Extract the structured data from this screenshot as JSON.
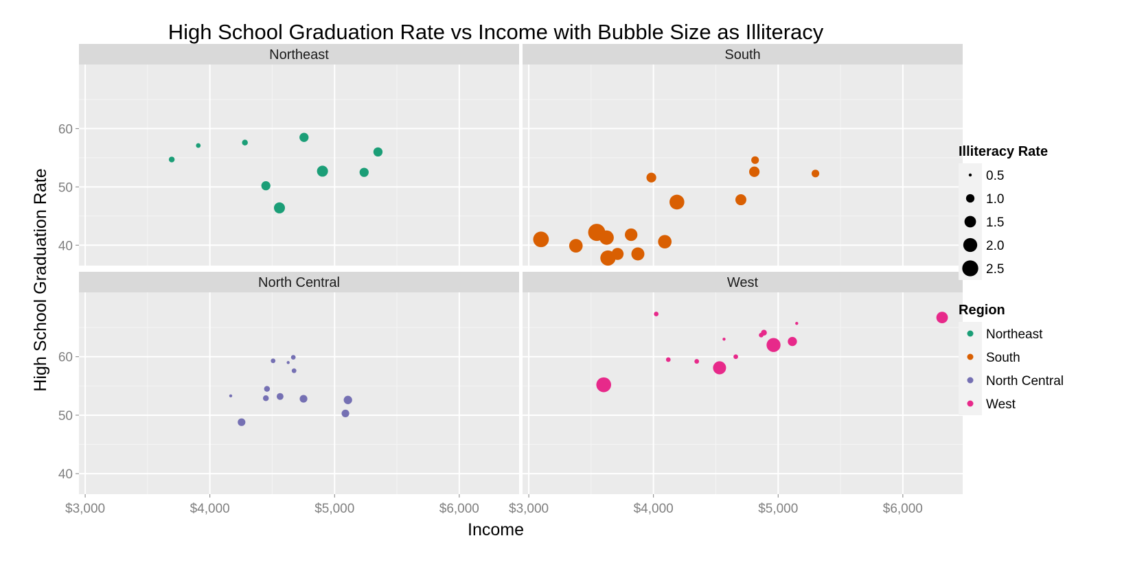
{
  "chart_data": {
    "type": "scatter",
    "title": "High School Graduation Rate vs Income with Bubble Size as Illiteracy",
    "xlabel": "Income",
    "ylabel": "High School Graduation Rate",
    "xlim": [
      2950,
      6480
    ],
    "ylim": [
      36.5,
      71
    ],
    "x_ticks": [
      3000,
      4000,
      5000,
      6000
    ],
    "x_tick_labels": [
      "$3,000",
      "$4,000",
      "$5,000",
      "$6,000"
    ],
    "y_ticks": [
      40,
      50,
      60
    ],
    "y_tick_labels": [
      "40",
      "50",
      "60"
    ],
    "grid": true,
    "legend_position": "right",
    "size_legend": {
      "title": "Illiteracy Rate",
      "values": [
        0.5,
        1.0,
        1.5,
        2.0,
        2.5
      ],
      "labels": [
        "0.5",
        "1.0",
        "1.5",
        "2.0",
        "2.5"
      ]
    },
    "color_legend": {
      "title": "Region",
      "entries": [
        {
          "label": "Northeast",
          "color": "#1b9e77"
        },
        {
          "label": "South",
          "color": "#d95f02"
        },
        {
          "label": "North Central",
          "color": "#7570b3"
        },
        {
          "label": "West",
          "color": "#e7298a"
        }
      ]
    },
    "facets": [
      {
        "name": "Northeast",
        "color": "#1b9e77",
        "points": [
          {
            "income": 3694,
            "grad": 54.7,
            "illiteracy": 0.7
          },
          {
            "income": 3907,
            "grad": 57.1,
            "illiteracy": 0.6
          },
          {
            "income": 4281,
            "grad": 57.6,
            "illiteracy": 0.7
          },
          {
            "income": 4449,
            "grad": 50.2,
            "illiteracy": 1.1
          },
          {
            "income": 4558,
            "grad": 46.4,
            "illiteracy": 1.4
          },
          {
            "income": 4755,
            "grad": 58.5,
            "illiteracy": 1.1
          },
          {
            "income": 4903,
            "grad": 52.7,
            "illiteracy": 1.4
          },
          {
            "income": 5237,
            "grad": 52.5,
            "illiteracy": 1.1
          },
          {
            "income": 5348,
            "grad": 56.0,
            "illiteracy": 1.1
          }
        ]
      },
      {
        "name": "South",
        "color": "#d95f02",
        "points": [
          {
            "income": 3098,
            "grad": 41.0,
            "illiteracy": 2.4
          },
          {
            "income": 3378,
            "grad": 39.9,
            "illiteracy": 1.9
          },
          {
            "income": 3545,
            "grad": 42.2,
            "illiteracy": 2.8
          },
          {
            "income": 3624,
            "grad": 41.3,
            "illiteracy": 2.1
          },
          {
            "income": 3635,
            "grad": 37.8,
            "illiteracy": 2.3
          },
          {
            "income": 3712,
            "grad": 38.5,
            "illiteracy": 1.6
          },
          {
            "income": 3821,
            "grad": 41.8,
            "illiteracy": 1.7
          },
          {
            "income": 3875,
            "grad": 38.5,
            "illiteracy": 1.8
          },
          {
            "income": 3983,
            "grad": 51.6,
            "illiteracy": 1.2
          },
          {
            "income": 4091,
            "grad": 40.6,
            "illiteracy": 1.9
          },
          {
            "income": 4188,
            "grad": 47.4,
            "illiteracy": 2.2
          },
          {
            "income": 4701,
            "grad": 47.8,
            "illiteracy": 1.4
          },
          {
            "income": 4809,
            "grad": 52.6,
            "illiteracy": 1.3
          },
          {
            "income": 4815,
            "grad": 54.6,
            "illiteracy": 0.9
          },
          {
            "income": 5299,
            "grad": 52.3,
            "illiteracy": 0.9
          }
        ]
      },
      {
        "name": "North Central",
        "color": "#7570b3",
        "points": [
          {
            "income": 4167,
            "grad": 53.3,
            "illiteracy": 0.5
          },
          {
            "income": 4254,
            "grad": 48.8,
            "illiteracy": 0.9
          },
          {
            "income": 4449,
            "grad": 52.9,
            "illiteracy": 0.7
          },
          {
            "income": 4458,
            "grad": 54.5,
            "illiteracy": 0.7
          },
          {
            "income": 4507,
            "grad": 59.3,
            "illiteracy": 0.6
          },
          {
            "income": 4563,
            "grad": 53.2,
            "illiteracy": 0.8
          },
          {
            "income": 4628,
            "grad": 59.0,
            "illiteracy": 0.5
          },
          {
            "income": 4669,
            "grad": 59.9,
            "illiteracy": 0.6
          },
          {
            "income": 4675,
            "grad": 57.6,
            "illiteracy": 0.6
          },
          {
            "income": 4751,
            "grad": 52.8,
            "illiteracy": 0.9
          },
          {
            "income": 5087,
            "grad": 50.3,
            "illiteracy": 0.9
          },
          {
            "income": 5107,
            "grad": 52.6,
            "illiteracy": 1.0
          }
        ]
      },
      {
        "name": "West",
        "color": "#e7298a",
        "points": [
          {
            "income": 3601,
            "grad": 55.2,
            "illiteracy": 2.2
          },
          {
            "income": 4022,
            "grad": 67.3,
            "illiteracy": 0.6
          },
          {
            "income": 4119,
            "grad": 59.5,
            "illiteracy": 0.6
          },
          {
            "income": 4347,
            "grad": 59.2,
            "illiteracy": 0.6
          },
          {
            "income": 4530,
            "grad": 58.1,
            "illiteracy": 1.8
          },
          {
            "income": 4566,
            "grad": 63.0,
            "illiteracy": 0.5
          },
          {
            "income": 4660,
            "grad": 60.0,
            "illiteracy": 0.6
          },
          {
            "income": 4864,
            "grad": 63.7,
            "illiteracy": 0.6
          },
          {
            "income": 4886,
            "grad": 64.1,
            "illiteracy": 0.7
          },
          {
            "income": 4963,
            "grad": 62.0,
            "illiteracy": 2.0
          },
          {
            "income": 5114,
            "grad": 62.6,
            "illiteracy": 1.1
          },
          {
            "income": 5149,
            "grad": 65.7,
            "illiteracy": 0.5
          },
          {
            "income": 6315,
            "grad": 66.7,
            "illiteracy": 1.5
          }
        ]
      }
    ]
  }
}
